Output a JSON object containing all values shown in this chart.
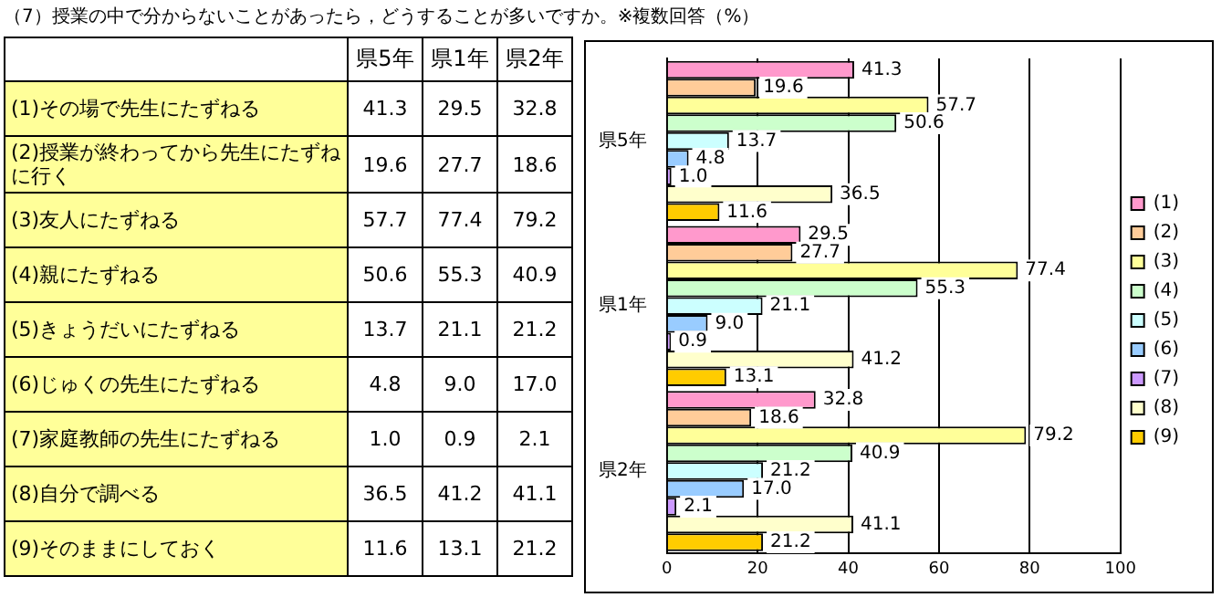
{
  "chart_data": {
    "type": "bar",
    "orientation": "horizontal",
    "title": "（7）授業の中で分からないことがあったら，どうすることが多いですか。※複数回答（%）",
    "categories": [
      "県5年",
      "県1年",
      "県2年"
    ],
    "series": [
      {
        "name": "(1)",
        "color": "#ff99cc",
        "values": [
          41.3,
          29.5,
          32.8
        ],
        "value_labels": [
          "41.3",
          "29.5",
          "32.8"
        ]
      },
      {
        "name": "(2)",
        "color": "#ffcc99",
        "values": [
          19.6,
          27.7,
          18.6
        ],
        "value_labels": [
          "19.6",
          "27.7",
          "18.6"
        ]
      },
      {
        "name": "(3)",
        "color": "#ffff99",
        "values": [
          57.7,
          77.4,
          79.2
        ],
        "value_labels": [
          "57.7",
          "77.4",
          "79.2"
        ]
      },
      {
        "name": "(4)",
        "color": "#ccffcc",
        "values": [
          50.6,
          55.3,
          40.9
        ],
        "value_labels": [
          "50.6",
          "55.3",
          "40.9"
        ]
      },
      {
        "name": "(5)",
        "color": "#ccffff",
        "values": [
          13.7,
          21.1,
          21.2
        ],
        "value_labels": [
          "13.7",
          "21.1",
          "21.2"
        ]
      },
      {
        "name": "(6)",
        "color": "#99ccff",
        "values": [
          4.8,
          9.0,
          17.0
        ],
        "value_labels": [
          "4.8",
          "9.0",
          "17.0"
        ]
      },
      {
        "name": "(7)",
        "color": "#cc99ff",
        "values": [
          1.0,
          0.9,
          2.1
        ],
        "value_labels": [
          "1.0",
          "0.9",
          "2.1"
        ]
      },
      {
        "name": "(8)",
        "color": "#ffffcc",
        "values": [
          36.5,
          41.2,
          41.1
        ],
        "value_labels": [
          "36.5",
          "41.2",
          "41.1"
        ]
      },
      {
        "name": "(9)",
        "color": "#ffcc00",
        "values": [
          11.6,
          13.1,
          21.2
        ],
        "value_labels": [
          "11.6",
          "13.1",
          "21.2"
        ]
      }
    ],
    "annotations": [
      "(1)その場で先生にたずねる",
      "(2)授業が終わってから先生にたずねに行く",
      "(3)友人にたずねる",
      "(4)親にたずねる",
      "(5)きょうだいにたずねる",
      "(6)じゅくの先生にたずねる",
      "(7)家庭教師の先生にたずねる",
      "(8)自分で調べる",
      "(9)そのままにしておく"
    ],
    "xlim": [
      0,
      100
    ],
    "xticks": [
      0,
      20,
      40,
      60,
      80,
      100
    ],
    "grid": "x",
    "legend": "right"
  }
}
